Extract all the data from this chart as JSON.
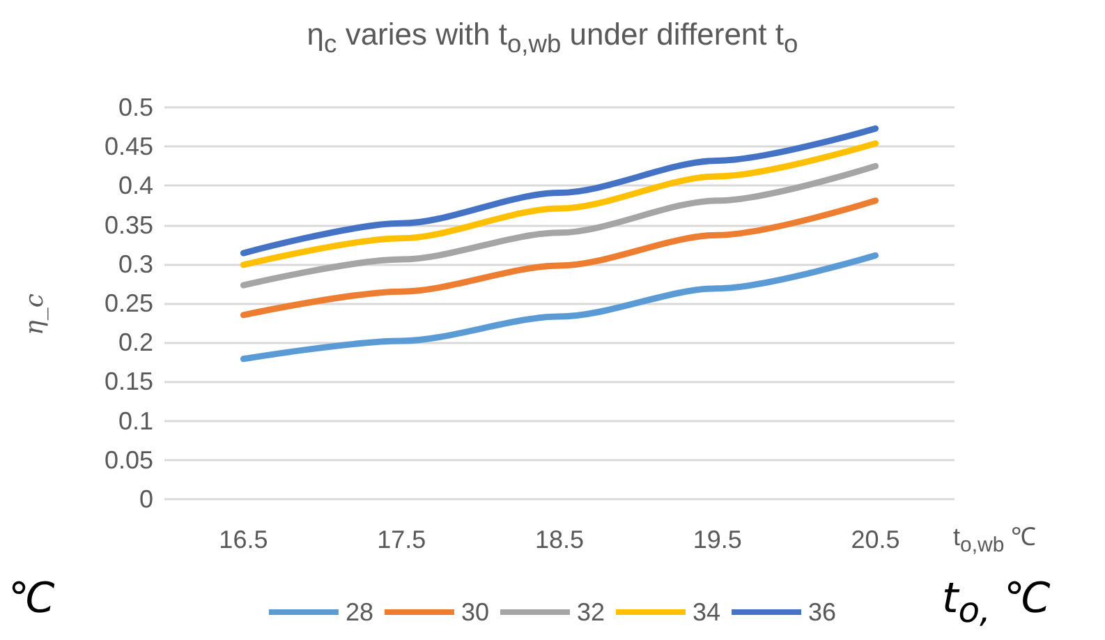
{
  "chart_data": {
    "type": "line",
    "title": "η$_{c}$ varies with t$_{o,wb}$ under different t$_{o}$",
    "xlabel": "t$_{o,wb}$ ℃",
    "ylabel": "η_c",
    "categories": [
      "16.5",
      "17.5",
      "18.5",
      "19.5",
      "20.5"
    ],
    "series": [
      {
        "name": "28",
        "color": "#5b9bd5",
        "values": [
          0.179,
          0.202,
          0.233,
          0.269,
          0.311
        ]
      },
      {
        "name": "30",
        "color": "#ed7d31",
        "values": [
          0.235,
          0.265,
          0.298,
          0.337,
          0.381
        ]
      },
      {
        "name": "32",
        "color": "#a5a5a5",
        "values": [
          0.273,
          0.306,
          0.34,
          0.381,
          0.425
        ]
      },
      {
        "name": "34",
        "color": "#ffc000",
        "values": [
          0.299,
          0.333,
          0.371,
          0.412,
          0.454
        ]
      },
      {
        "name": "36",
        "color": "#4472c4",
        "values": [
          0.314,
          0.352,
          0.391,
          0.432,
          0.473
        ]
      }
    ],
    "ylim": [
      0,
      0.5
    ],
    "yticks": [
      0,
      0.05,
      0.1,
      0.15,
      0.2,
      0.25,
      0.3,
      0.35,
      0.4,
      0.45,
      0.5
    ],
    "grid": "y",
    "legend": "bottom",
    "marker": "none",
    "line_style": "solid",
    "annotations": [
      "℃",
      "t$_{o,}$ ℃"
    ]
  }
}
